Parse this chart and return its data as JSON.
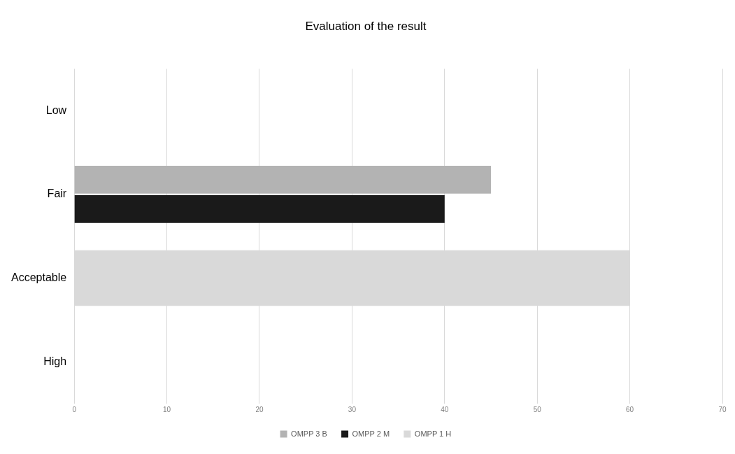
{
  "chart_data": {
    "type": "bar",
    "orientation": "horizontal",
    "title": "Evaluation of the result",
    "categories": [
      "Low",
      "Fair",
      "Acceptable",
      "High"
    ],
    "series": [
      {
        "name": "OMPP 3 B",
        "color": "#b3b3b3",
        "values": [
          null,
          45,
          null,
          null
        ]
      },
      {
        "name": "OMPP 2 M",
        "color": "#1a1a1a",
        "values": [
          null,
          40,
          null,
          null
        ]
      },
      {
        "name": "OMPP 1 H",
        "color": "#d9d9d9",
        "values": [
          null,
          null,
          60,
          null
        ]
      }
    ],
    "xlim": [
      0,
      70
    ],
    "xticks": [
      0,
      10,
      20,
      30,
      40,
      50,
      60,
      70
    ],
    "grid": "x",
    "legend": "bottom"
  }
}
